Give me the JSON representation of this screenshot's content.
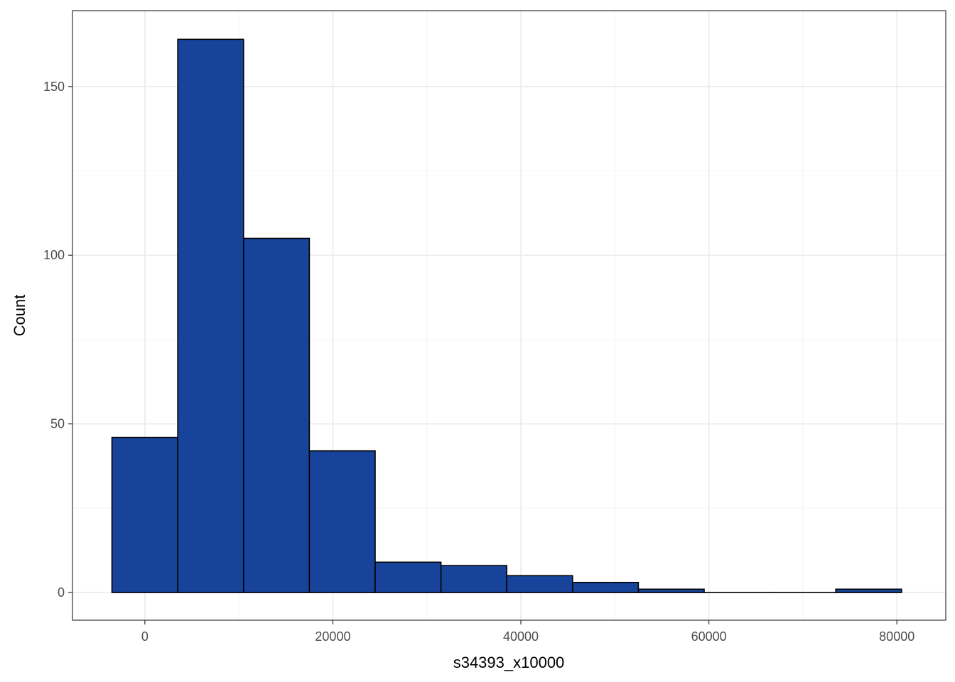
{
  "chart_data": {
    "type": "bar",
    "variant": "histogram",
    "xlabel": "s34393_x10000",
    "ylabel": "Count",
    "xlim": [
      -7700,
      85200
    ],
    "ylim": [
      -8.2,
      172.5
    ],
    "x_ticks": [
      0,
      20000,
      40000,
      60000,
      80000
    ],
    "x_minor_ticks": [
      10000,
      30000,
      50000,
      70000
    ],
    "y_ticks": [
      0,
      50,
      100,
      150
    ],
    "y_minor_ticks": [
      25,
      75,
      125
    ],
    "grid": true,
    "legend": "none",
    "bins": [
      {
        "x0": -3500,
        "x1": 3500,
        "count": 46
      },
      {
        "x0": 3500,
        "x1": 10500,
        "count": 164
      },
      {
        "x0": 10500,
        "x1": 17500,
        "count": 105
      },
      {
        "x0": 17500,
        "x1": 24500,
        "count": 42
      },
      {
        "x0": 24500,
        "x1": 31500,
        "count": 9
      },
      {
        "x0": 31500,
        "x1": 38500,
        "count": 8
      },
      {
        "x0": 38500,
        "x1": 45500,
        "count": 5
      },
      {
        "x0": 45500,
        "x1": 52500,
        "count": 3
      },
      {
        "x0": 52500,
        "x1": 59500,
        "count": 1
      },
      {
        "x0": 59500,
        "x1": 66500,
        "count": 0
      },
      {
        "x0": 66500,
        "x1": 73500,
        "count": 0
      },
      {
        "x0": 73500,
        "x1": 80500,
        "count": 1
      }
    ],
    "colors": {
      "fill": "#17449a",
      "outline": "#000000",
      "grid_major": "#ebebeb",
      "grid_minor": "#f4f4f4",
      "panel_border": "#333333"
    }
  }
}
